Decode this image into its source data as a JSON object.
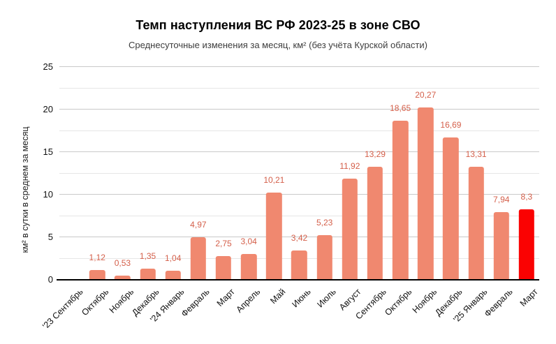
{
  "chart_data": {
    "type": "bar",
    "title": "Темп наступления ВС РФ 2023-25 в зоне СВО",
    "subtitle": "Среднесуточные изменения за месяц, км² (без учёта Курской области)",
    "ylabel": "км² в сутки в среднем за месяц",
    "xlabel": "",
    "ylim": [
      0,
      25
    ],
    "yticks": [
      0,
      5,
      10,
      15,
      20,
      25
    ],
    "minor_grid_step": 2.5,
    "grid": "horizontal, major and minor lines",
    "legend": "none",
    "categories": [
      "'23 Сентябрь",
      "Октябрь",
      "Ноябрь",
      "Декабрь",
      "'24 Январь",
      "Февраль",
      "Март",
      "Апрель",
      "Май",
      "Июнь",
      "Июль",
      "Август",
      "Сентябрь",
      "Октябрь",
      "Ноябрь",
      "Декабрь",
      "'25 Январь",
      "Февраль",
      "Март"
    ],
    "values": [
      0,
      1.12,
      0.53,
      1.35,
      1.04,
      4.97,
      2.75,
      3.04,
      10.21,
      3.42,
      5.23,
      11.92,
      13.29,
      18.65,
      20.27,
      16.69,
      13.31,
      7.94,
      8.3
    ],
    "value_labels": [
      "",
      "1,12",
      "0,53",
      "1,35",
      "1,04",
      "4,97",
      "2,75",
      "3,04",
      "10,21",
      "3,42",
      "5,23",
      "11,92",
      "13,29",
      "18,65",
      "20,27",
      "16,69",
      "13,31",
      "7,94",
      "8,3"
    ],
    "highlight_index": 18,
    "colors": {
      "bar": "#f0886f",
      "highlight_bar": "#fa0202",
      "value_label": "#d45f4a",
      "grid_major": "#c9c9c9",
      "grid_minor": "#e6e6e6",
      "axis_line": "#000000"
    }
  }
}
